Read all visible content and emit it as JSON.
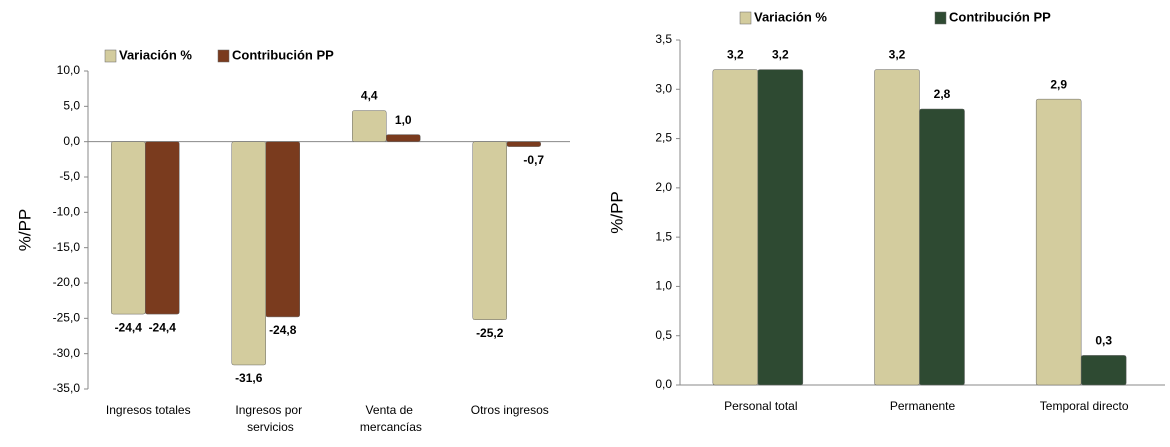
{
  "chart_data": [
    {
      "type": "bar",
      "y_label": "%/PP",
      "categories": [
        "Ingresos totales",
        "Ingresos por servicios",
        "Venta de mercancías",
        "Otros ingresos"
      ],
      "series": [
        {
          "name": "Variación %",
          "color": "#d3cc9e",
          "values": [
            -24.4,
            -31.6,
            4.4,
            -25.2
          ],
          "value_labels": [
            "-24,4",
            "-31,6",
            "4,4",
            "-25,2"
          ]
        },
        {
          "name": "Contribución PP",
          "color": "#7a3b1e",
          "values": [
            -24.4,
            -24.8,
            1.0,
            -0.7
          ],
          "value_labels": [
            "-24,4",
            "-24,8",
            "1,0",
            "-0,7"
          ]
        }
      ],
      "ylim": [
        -35,
        10
      ],
      "yticks": [
        {
          "value": -35,
          "label": "-35,0"
        },
        {
          "value": -30,
          "label": "-30,0"
        },
        {
          "value": -25,
          "label": "-25,0"
        },
        {
          "value": -20,
          "label": "-20,0"
        },
        {
          "value": -15,
          "label": "-15,0"
        },
        {
          "value": -10,
          "label": "-10,0"
        },
        {
          "value": -5,
          "label": "-5,0"
        },
        {
          "value": 0,
          "label": "0,0"
        },
        {
          "value": 5,
          "label": "5,0"
        },
        {
          "value": 10,
          "label": "10,0"
        }
      ],
      "grid": false
    },
    {
      "type": "bar",
      "y_label": "%/PP",
      "categories": [
        "Personal total",
        "Permanente",
        "Temporal directo"
      ],
      "series": [
        {
          "name": "Variación %",
          "color": "#d3cc9e",
          "values": [
            3.2,
            3.2,
            2.9
          ],
          "value_labels": [
            "3,2",
            "3,2",
            "2,9"
          ]
        },
        {
          "name": "Contribución PP",
          "color": "#2e4a32",
          "values": [
            3.2,
            2.8,
            0.3
          ],
          "value_labels": [
            "3,2",
            "2,8",
            "0,3"
          ]
        }
      ],
      "ylim": [
        0,
        3.5
      ],
      "yticks": [
        {
          "value": 0,
          "label": "0,0"
        },
        {
          "value": 0.5,
          "label": "0,5"
        },
        {
          "value": 1,
          "label": "1,0"
        },
        {
          "value": 1.5,
          "label": "1,5"
        },
        {
          "value": 2,
          "label": "2,0"
        },
        {
          "value": 2.5,
          "label": "2,5"
        },
        {
          "value": 3,
          "label": "3,0"
        },
        {
          "value": 3.5,
          "label": "3,5"
        }
      ],
      "grid": false
    }
  ]
}
